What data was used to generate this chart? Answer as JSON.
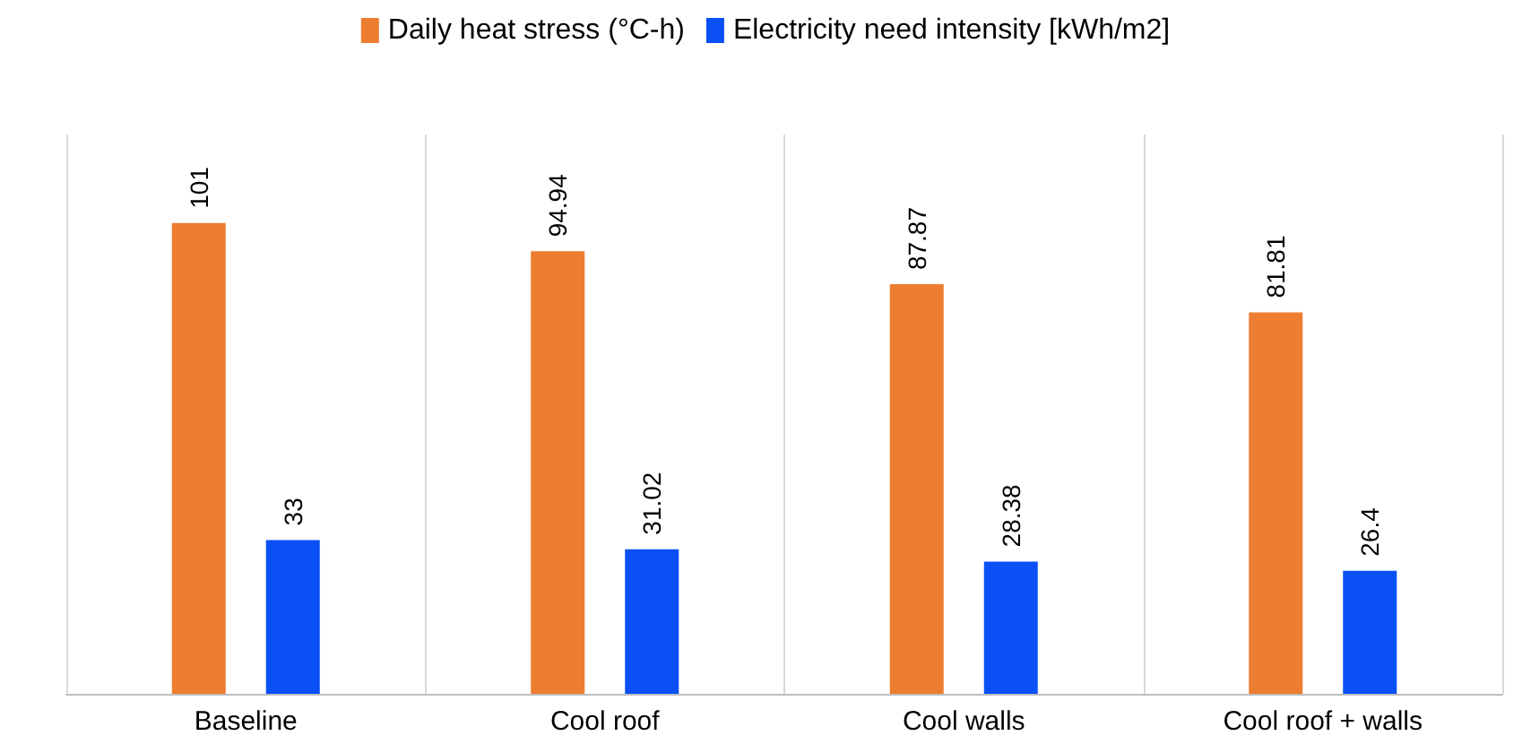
{
  "chart_data": {
    "type": "bar",
    "categories": [
      "Baseline",
      "Cool roof",
      "Cool walls",
      "Cool roof + walls"
    ],
    "series": [
      {
        "name": "Daily heat stress (°C-h)",
        "color": "#ed7d31",
        "values": [
          101,
          94.94,
          87.87,
          81.81
        ]
      },
      {
        "name": "Electricity need intensity [kWh/m2]",
        "color": "#0a50f5",
        "values": [
          33,
          31.02,
          28.38,
          26.4
        ]
      }
    ],
    "data_labels": true,
    "grid": "x",
    "legend": "top"
  }
}
